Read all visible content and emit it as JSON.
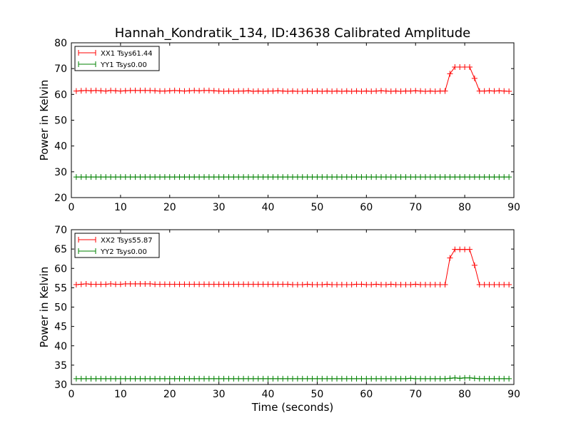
{
  "title": "Hannah_Kondratik_134, ID:43638 Calibrated Amplitude",
  "chart_data": [
    {
      "type": "line",
      "xlabel": "",
      "ylabel": "Power in Kelvin",
      "xlim": [
        0,
        90
      ],
      "ylim": [
        20,
        80
      ],
      "xticks": [
        0,
        10,
        20,
        30,
        40,
        50,
        60,
        70,
        80,
        90
      ],
      "yticks": [
        20,
        30,
        40,
        50,
        60,
        70,
        80
      ],
      "xtick_labels": [
        "0",
        "10",
        "20",
        "30",
        "40",
        "50",
        "60",
        "70",
        "80",
        "90"
      ],
      "ytick_labels": [
        "20",
        "30",
        "40",
        "50",
        "60",
        "70",
        "80"
      ],
      "legend_position": "top-left",
      "marker": "+",
      "x": [
        1,
        2,
        3,
        4,
        5,
        6,
        7,
        8,
        9,
        10,
        11,
        12,
        13,
        14,
        15,
        16,
        17,
        18,
        19,
        20,
        21,
        22,
        23,
        24,
        25,
        26,
        27,
        28,
        29,
        30,
        31,
        32,
        33,
        34,
        35,
        36,
        37,
        38,
        39,
        40,
        41,
        42,
        43,
        44,
        45,
        46,
        47,
        48,
        49,
        50,
        51,
        52,
        53,
        54,
        55,
        56,
        57,
        58,
        59,
        60,
        61,
        62,
        63,
        64,
        65,
        66,
        67,
        68,
        69,
        70,
        71,
        72,
        73,
        74,
        75,
        76,
        77,
        78,
        79,
        80,
        81,
        82,
        83,
        84,
        85,
        86,
        87,
        88,
        89
      ],
      "series": [
        {
          "name": "XX1 Tsys61.44",
          "color": "#ff0000",
          "values": [
            61.3,
            61.4,
            61.5,
            61.4,
            61.5,
            61.4,
            61.3,
            61.5,
            61.4,
            61.3,
            61.4,
            61.5,
            61.5,
            61.5,
            61.5,
            61.5,
            61.4,
            61.3,
            61.3,
            61.4,
            61.5,
            61.4,
            61.3,
            61.4,
            61.5,
            61.4,
            61.5,
            61.5,
            61.4,
            61.3,
            61.2,
            61.3,
            61.2,
            61.3,
            61.3,
            61.4,
            61.2,
            61.3,
            61.2,
            61.3,
            61.3,
            61.4,
            61.3,
            61.2,
            61.3,
            61.2,
            61.2,
            61.3,
            61.2,
            61.3,
            61.2,
            61.3,
            61.2,
            61.3,
            61.2,
            61.3,
            61.2,
            61.3,
            61.2,
            61.3,
            61.2,
            61.3,
            61.4,
            61.3,
            61.2,
            61.3,
            61.2,
            61.3,
            61.3,
            61.4,
            61.3,
            61.2,
            61.3,
            61.2,
            61.3,
            61.3,
            68.0,
            70.6,
            70.6,
            70.6,
            70.6,
            66.2,
            61.3,
            61.3,
            61.4,
            61.3,
            61.4,
            61.3,
            61.2
          ]
        },
        {
          "name": "YY1 Tsys0.00",
          "color": "#008000",
          "values": [
            28.0,
            28.0,
            28.0,
            28.0,
            28.0,
            28.0,
            28.0,
            28.0,
            28.0,
            28.0,
            28.0,
            28.0,
            28.0,
            28.0,
            28.0,
            28.0,
            28.0,
            28.0,
            28.0,
            28.0,
            28.0,
            28.0,
            28.0,
            28.0,
            28.0,
            28.0,
            28.0,
            28.0,
            28.0,
            28.0,
            28.0,
            28.0,
            28.0,
            28.0,
            28.0,
            28.0,
            28.0,
            28.0,
            28.0,
            28.0,
            28.0,
            28.0,
            28.0,
            28.0,
            28.0,
            28.0,
            28.0,
            28.0,
            28.0,
            28.0,
            28.0,
            28.0,
            28.0,
            28.0,
            28.0,
            28.0,
            28.0,
            28.0,
            28.0,
            28.0,
            28.0,
            28.0,
            28.0,
            28.0,
            28.0,
            28.0,
            28.0,
            28.0,
            28.0,
            28.0,
            28.0,
            28.0,
            28.0,
            28.0,
            28.0,
            28.0,
            28.0,
            28.0,
            28.0,
            28.0,
            28.0,
            28.0,
            28.0,
            28.0,
            28.0,
            28.0,
            28.0,
            28.0,
            28.0
          ]
        }
      ]
    },
    {
      "type": "line",
      "xlabel": "Time (seconds)",
      "ylabel": "Power in Kelvin",
      "xlim": [
        0,
        90
      ],
      "ylim": [
        30,
        70
      ],
      "xticks": [
        0,
        10,
        20,
        30,
        40,
        50,
        60,
        70,
        80,
        90
      ],
      "yticks": [
        30,
        35,
        40,
        45,
        50,
        55,
        60,
        65,
        70
      ],
      "xtick_labels": [
        "0",
        "10",
        "20",
        "30",
        "40",
        "50",
        "60",
        "70",
        "80",
        "90"
      ],
      "ytick_labels": [
        "30",
        "35",
        "40",
        "45",
        "50",
        "55",
        "60",
        "65",
        "70"
      ],
      "legend_position": "top-left",
      "marker": "+",
      "x": [
        1,
        2,
        3,
        4,
        5,
        6,
        7,
        8,
        9,
        10,
        11,
        12,
        13,
        14,
        15,
        16,
        17,
        18,
        19,
        20,
        21,
        22,
        23,
        24,
        25,
        26,
        27,
        28,
        29,
        30,
        31,
        32,
        33,
        34,
        35,
        36,
        37,
        38,
        39,
        40,
        41,
        42,
        43,
        44,
        45,
        46,
        47,
        48,
        49,
        50,
        51,
        52,
        53,
        54,
        55,
        56,
        57,
        58,
        59,
        60,
        61,
        62,
        63,
        64,
        65,
        66,
        67,
        68,
        69,
        70,
        71,
        72,
        73,
        74,
        75,
        76,
        77,
        78,
        79,
        80,
        81,
        82,
        83,
        84,
        85,
        86,
        87,
        88,
        89
      ],
      "series": [
        {
          "name": "XX2 Tsys55.87",
          "color": "#ff0000",
          "values": [
            55.8,
            55.9,
            56.0,
            55.9,
            55.9,
            55.9,
            55.9,
            56.0,
            55.9,
            55.9,
            56.0,
            56.0,
            56.0,
            56.0,
            56.0,
            56.0,
            55.9,
            55.9,
            55.9,
            55.9,
            55.9,
            55.9,
            55.9,
            55.9,
            55.9,
            55.9,
            55.9,
            55.9,
            55.9,
            55.9,
            55.9,
            55.9,
            55.9,
            55.9,
            55.9,
            55.9,
            55.9,
            55.9,
            55.9,
            55.9,
            55.9,
            55.9,
            55.9,
            55.9,
            55.8,
            55.8,
            55.8,
            55.9,
            55.8,
            55.8,
            55.8,
            55.9,
            55.8,
            55.8,
            55.8,
            55.8,
            55.8,
            55.9,
            55.9,
            55.8,
            55.8,
            55.9,
            55.8,
            55.8,
            55.9,
            55.8,
            55.8,
            55.8,
            55.8,
            55.9,
            55.8,
            55.8,
            55.8,
            55.8,
            55.8,
            55.8,
            62.7,
            64.9,
            64.9,
            64.9,
            64.9,
            60.8,
            55.8,
            55.8,
            55.8,
            55.8,
            55.8,
            55.8,
            55.8
          ]
        },
        {
          "name": "YY2 Tsys0.00",
          "color": "#008000",
          "values": [
            31.5,
            31.5,
            31.5,
            31.5,
            31.5,
            31.5,
            31.5,
            31.5,
            31.5,
            31.5,
            31.5,
            31.5,
            31.5,
            31.5,
            31.5,
            31.5,
            31.5,
            31.5,
            31.5,
            31.5,
            31.5,
            31.5,
            31.5,
            31.5,
            31.5,
            31.5,
            31.5,
            31.5,
            31.5,
            31.5,
            31.5,
            31.5,
            31.5,
            31.5,
            31.5,
            31.5,
            31.5,
            31.5,
            31.5,
            31.5,
            31.5,
            31.5,
            31.5,
            31.5,
            31.5,
            31.5,
            31.5,
            31.5,
            31.5,
            31.5,
            31.5,
            31.5,
            31.5,
            31.5,
            31.5,
            31.5,
            31.5,
            31.5,
            31.5,
            31.5,
            31.5,
            31.5,
            31.5,
            31.5,
            31.5,
            31.5,
            31.5,
            31.5,
            31.6,
            31.5,
            31.5,
            31.5,
            31.5,
            31.5,
            31.5,
            31.5,
            31.6,
            31.7,
            31.6,
            31.7,
            31.7,
            31.6,
            31.5,
            31.5,
            31.5,
            31.5,
            31.5,
            31.5,
            31.5
          ]
        }
      ]
    }
  ]
}
